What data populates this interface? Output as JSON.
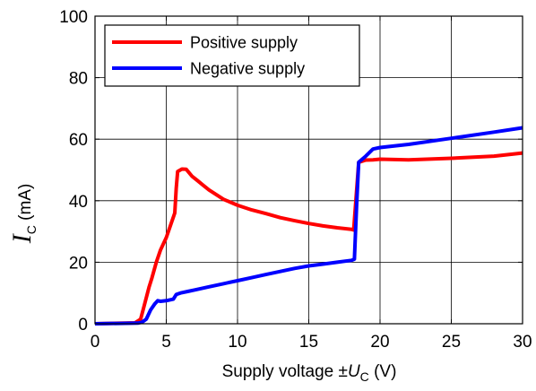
{
  "chart_data": {
    "type": "line",
    "xlabel": {
      "prefix": "Supply voltage ±",
      "symbol": "U",
      "subscript": "C",
      "suffix": " (V)"
    },
    "ylabel": {
      "symbol": "I",
      "subscript": "C",
      "suffix": " (mA)"
    },
    "xlim": [
      0,
      30
    ],
    "ylim": [
      0,
      100
    ],
    "xticks": [
      0,
      5,
      10,
      15,
      20,
      25,
      30
    ],
    "yticks": [
      0,
      20,
      40,
      60,
      80,
      100
    ],
    "grid": true,
    "legend_position": "top-left",
    "series": [
      {
        "name": "Positive supply",
        "color": "#ff0000",
        "x": [
          0,
          2.8,
          3.2,
          3.4,
          3.8,
          4.0,
          4.3,
          4.6,
          5.0,
          5.6,
          5.7,
          5.8,
          6.1,
          6.4,
          6.8,
          7.2,
          7.6,
          8.0,
          9.0,
          10.0,
          11.0,
          12.0,
          13.0,
          14.0,
          15.0,
          16.0,
          17.0,
          18.0,
          18.15,
          18.3,
          18.5,
          19.0,
          19.5,
          20.0,
          22.0,
          25.0,
          28.0,
          30.0
        ],
        "y": [
          0,
          0.3,
          1.5,
          5,
          12,
          15,
          20,
          24,
          28,
          36,
          44,
          49.5,
          50.3,
          50.2,
          48,
          46.5,
          45,
          43.5,
          40.5,
          38.5,
          37,
          35.8,
          34.5,
          33.5,
          32.6,
          31.8,
          31.2,
          30.7,
          30.5,
          40,
          52.5,
          53.2,
          53.3,
          53.5,
          53.3,
          53.8,
          54.5,
          55.5
        ]
      },
      {
        "name": "Negative supply",
        "color": "#0000ff",
        "x": [
          0,
          3.0,
          3.3,
          3.6,
          3.9,
          4.2,
          4.4,
          4.6,
          5.0,
          5.5,
          5.7,
          6.0,
          6.5,
          7.0,
          8.0,
          9.0,
          10.0,
          11.0,
          12.0,
          13.0,
          14.0,
          15.0,
          16.0,
          17.0,
          18.0,
          18.2,
          18.35,
          18.5,
          19.0,
          19.5,
          20.0,
          22.0,
          25.0,
          28.0,
          30.0
        ],
        "y": [
          0,
          0.2,
          0.5,
          1.5,
          4.5,
          6.5,
          7.5,
          7.3,
          7.5,
          8.0,
          9.5,
          10.0,
          10.5,
          11.0,
          12.0,
          13.0,
          14.0,
          15.0,
          16.0,
          17.0,
          18.0,
          18.8,
          19.4,
          20.0,
          20.6,
          21.0,
          38,
          52.5,
          54.5,
          56.8,
          57.3,
          58.3,
          60.3,
          62.3,
          63.7
        ]
      }
    ]
  }
}
